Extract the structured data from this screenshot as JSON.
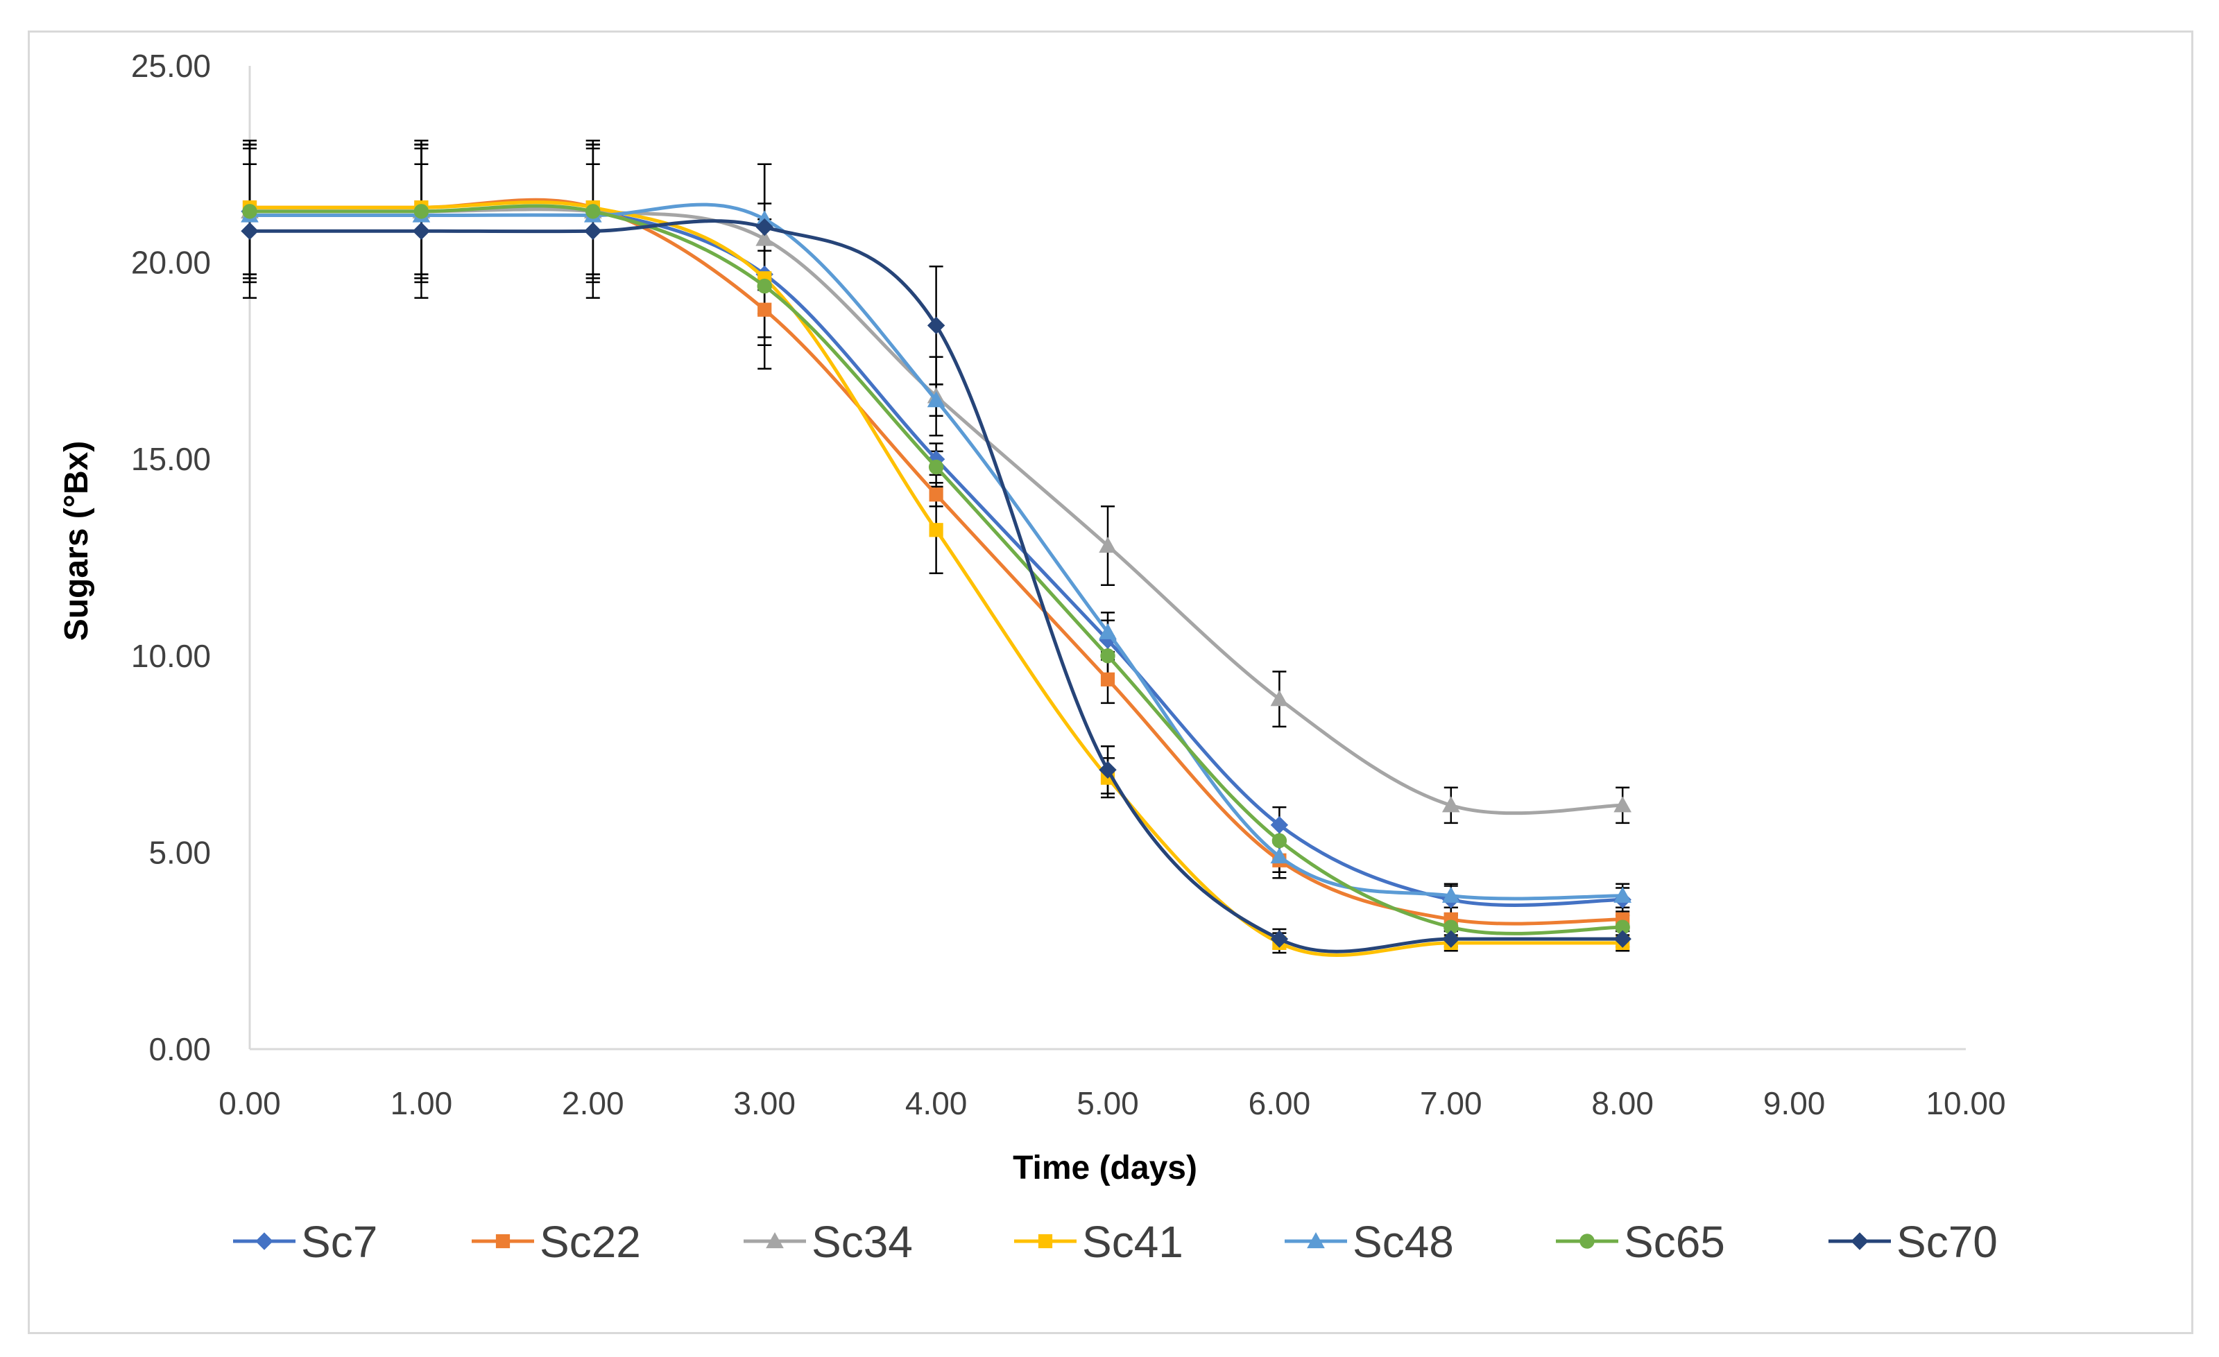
{
  "chart_data": {
    "type": "line",
    "title": "",
    "xlabel": "Time (days)",
    "ylabel": "Sugars (°Bx)",
    "xlim": [
      0,
      10
    ],
    "ylim": [
      0,
      25
    ],
    "x_ticks": [
      "0.00",
      "1.00",
      "2.00",
      "3.00",
      "4.00",
      "5.00",
      "6.00",
      "7.00",
      "8.00",
      "9.00",
      "10.00"
    ],
    "y_ticks": [
      "0.00",
      "5.00",
      "10.00",
      "15.00",
      "20.00",
      "25.00"
    ],
    "grid": false,
    "legend_position": "bottom",
    "x": [
      0,
      1,
      2,
      3,
      4,
      5,
      6,
      7,
      8
    ],
    "series": [
      {
        "name": "Sc7",
        "color": "#4472C4",
        "marker": "diamond",
        "values": [
          21.3,
          21.3,
          21.3,
          19.7,
          15.0,
          10.4,
          5.7,
          3.8,
          3.8
        ],
        "errors": [
          1.7,
          1.7,
          1.7,
          1.8,
          0.4,
          0.5,
          0.45,
          0.35,
          0.3
        ]
      },
      {
        "name": "Sc22",
        "color": "#ED7D31",
        "marker": "square",
        "values": [
          21.4,
          21.4,
          21.4,
          18.8,
          14.1,
          9.4,
          4.8,
          3.3,
          3.3
        ],
        "errors": [
          1.7,
          1.7,
          1.7,
          1.5,
          0.3,
          0.6,
          0.45,
          0.3,
          0.3
        ]
      },
      {
        "name": "Sc34",
        "color": "#A5A5A5",
        "marker": "triangle",
        "values": [
          21.3,
          21.3,
          21.3,
          20.6,
          16.6,
          12.8,
          8.9,
          6.2,
          6.2
        ],
        "errors": [
          1.7,
          1.7,
          1.7,
          1.9,
          1.0,
          1.0,
          0.7,
          0.45,
          0.45
        ]
      },
      {
        "name": "Sc41",
        "color": "#FFC000",
        "marker": "square",
        "values": [
          21.4,
          21.4,
          21.4,
          19.6,
          13.2,
          6.9,
          2.7,
          2.7,
          2.7
        ],
        "errors": [
          1.7,
          1.7,
          1.7,
          1.5,
          1.1,
          0.5,
          0.25,
          0.2,
          0.2
        ]
      },
      {
        "name": "Sc48",
        "color": "#5B9BD5",
        "marker": "triangle",
        "values": [
          21.2,
          21.2,
          21.2,
          21.1,
          16.5,
          10.6,
          4.9,
          3.9,
          3.9
        ],
        "errors": [
          1.7,
          1.7,
          1.7,
          1.4,
          0.4,
          0.5,
          0.4,
          0.3,
          0.3
        ]
      },
      {
        "name": "Sc65",
        "color": "#70AD47",
        "marker": "circle",
        "values": [
          21.3,
          21.3,
          21.3,
          19.4,
          14.8,
          10.0,
          5.3,
          3.1,
          3.1
        ],
        "errors": [
          1.7,
          1.7,
          1.7,
          1.5,
          0.4,
          0.5,
          0.4,
          0.3,
          0.3
        ]
      },
      {
        "name": "Sc70",
        "color": "#264478",
        "marker": "diamond",
        "values": [
          20.8,
          20.8,
          20.8,
          20.9,
          18.4,
          7.1,
          2.8,
          2.8,
          2.8
        ],
        "errors": [
          1.7,
          1.7,
          1.7,
          1.6,
          1.5,
          0.6,
          0.25,
          0.2,
          0.2
        ]
      }
    ]
  }
}
